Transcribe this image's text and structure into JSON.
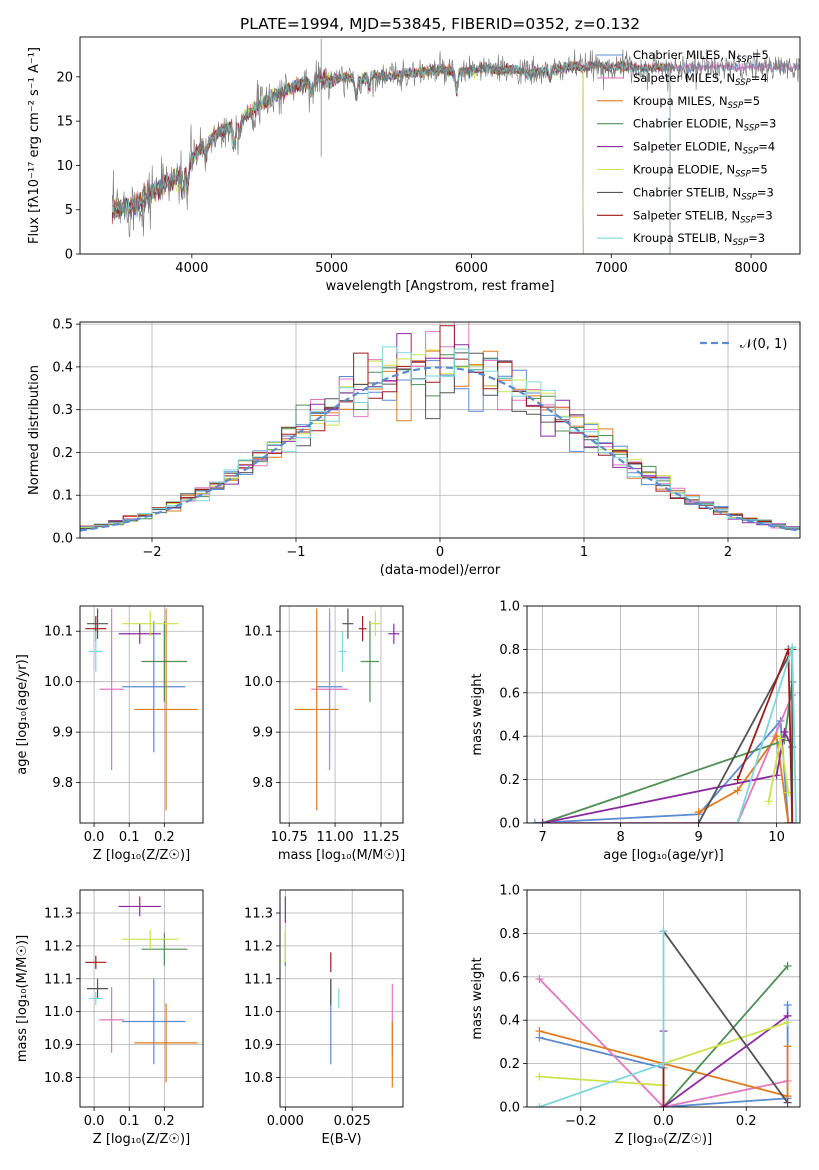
{
  "figure": {
    "title": "PLATE=1994, MJD=53845, FIBERID=0352, z=0.132"
  },
  "colors": {
    "chabrier_miles": "#5b8bd0",
    "salpeter_miles": "#e377c2",
    "kroupa_miles": "#e07b20",
    "chabrier_elodie": "#4f8f55",
    "salpeter_elodie": "#8a2ca0",
    "kroupa_elodie": "#cde24a",
    "chabrier_stelib": "#555555",
    "salpeter_stelib": "#9b1c1c",
    "kroupa_stelib": "#7fd6db",
    "normal_curve": "#5b8bd0"
  },
  "chart_data": [
    {
      "id": "spectrum",
      "type": "line",
      "title": "PLATE=1994, MJD=53845, FIBERID=0352, z=0.132",
      "xlabel": "wavelength [Angstrom, rest frame]",
      "ylabel": "Flux [fλ10⁻¹⁷ erg cm⁻² s⁻¹ A⁻¹]",
      "xlim": [
        3200,
        8350
      ],
      "ylim": [
        0,
        24.5
      ],
      "xticks": [
        4000,
        5000,
        6000,
        7000,
        8000
      ],
      "yticks": [
        0,
        5,
        10,
        15,
        20
      ],
      "grid": false,
      "legend_position": "top-right",
      "continuum": {
        "x": [
          3400,
          3500,
          3600,
          3700,
          3800,
          3900,
          4000,
          4100,
          4200,
          4300,
          4400,
          4500,
          4600,
          4700,
          4800,
          4900,
          5000,
          5100,
          5200,
          5300,
          5400,
          5500,
          5600,
          5700,
          5800,
          5900,
          6000,
          6100,
          6200,
          6300,
          6400,
          6500,
          6600,
          6700,
          6800,
          6900,
          7000,
          7100,
          7200,
          7300,
          7400
        ],
        "y": [
          4.8,
          5.2,
          5.5,
          6.8,
          7.8,
          8.5,
          10.8,
          12.5,
          13.8,
          14.5,
          15.8,
          17.0,
          17.8,
          18.8,
          19.2,
          19.8,
          19.5,
          20.0,
          19.6,
          20.2,
          20.0,
          20.3,
          20.4,
          20.6,
          20.8,
          20.5,
          20.7,
          21.0,
          20.6,
          20.9,
          20.4,
          20.6,
          20.8,
          21.2,
          21.0,
          21.3,
          21.0,
          21.2,
          20.9,
          21.0,
          21.1
        ]
      },
      "series": [
        {
          "name": "Chabrier MILES, N_SSP=5",
          "label_main": "Chabrier MILES, N",
          "label_sub": "SSP",
          "label_tail": "=5",
          "color_key": "chabrier_miles",
          "x_end": 8350
        },
        {
          "name": "Salpeter MILES, N_SSP=4",
          "label_main": "Salpeter MILES, N",
          "label_sub": "SSP",
          "label_tail": "=4",
          "color_key": "salpeter_miles",
          "x_end": 8350
        },
        {
          "name": "Kroupa MILES, N_SSP=5",
          "label_main": "Kroupa MILES, N",
          "label_sub": "SSP",
          "label_tail": "=5",
          "color_key": "kroupa_miles",
          "x_end": 7420
        },
        {
          "name": "Chabrier ELODIE, N_SSP=3",
          "label_main": "Chabrier ELODIE, N",
          "label_sub": "SSP",
          "label_tail": "=3",
          "color_key": "chabrier_elodie",
          "x_end": 6800
        },
        {
          "name": "Salpeter ELODIE, N_SSP=4",
          "label_main": "Salpeter ELODIE, N",
          "label_sub": "SSP",
          "label_tail": "=4",
          "color_key": "salpeter_elodie",
          "x_end": 6800
        },
        {
          "name": "Kroupa ELODIE, N_SSP=5",
          "label_main": "Kroupa ELODIE, N",
          "label_sub": "SSP",
          "label_tail": "=5",
          "color_key": "kroupa_elodie",
          "x_end": 6800
        },
        {
          "name": "Chabrier STELIB, N_SSP=3",
          "label_main": "Chabrier STELIB, N",
          "label_sub": "SSP",
          "label_tail": "=3",
          "color_key": "chabrier_stelib",
          "x_end": 7420
        },
        {
          "name": "Salpeter STELIB, N_SSP=3",
          "label_main": "Salpeter STELIB, N",
          "label_sub": "SSP",
          "label_tail": "=3",
          "color_key": "salpeter_stelib",
          "x_end": 7420
        },
        {
          "name": "Kroupa STELIB, N_SSP=3",
          "label_main": "Kroupa STELIB, N",
          "label_sub": "SSP",
          "label_tail": "=3",
          "color_key": "kroupa_stelib",
          "x_end": 7420
        }
      ]
    },
    {
      "id": "residuals",
      "type": "line",
      "xlabel": "(data-model)/error",
      "ylabel": "Normed distribution",
      "xlim": [
        -2.5,
        2.5
      ],
      "ylim": [
        0,
        0.505
      ],
      "xticks": [
        -2,
        -1,
        0,
        1,
        2
      ],
      "yticks": [
        0.0,
        0.1,
        0.2,
        0.3,
        0.4,
        0.5
      ],
      "grid": true,
      "legend_position": "top-right",
      "legend_label": "𝒩(0, 1)",
      "bin_width": 0.1,
      "curve": {
        "name": "N(0,1)",
        "mean": 0,
        "sigma": 1,
        "color_key": "normal_curve"
      }
    },
    {
      "id": "age_vs_Z",
      "type": "scatter",
      "xlabel": "Z [log₁₀(Z/Z☉)]",
      "ylabel": "age  [log₁₀(age/yr)]",
      "xlim": [
        -0.04,
        0.31
      ],
      "ylim": [
        9.72,
        10.15
      ],
      "xticks": [
        0.0,
        0.1,
        0.2
      ],
      "yticks": [
        9.8,
        9.9,
        10.0,
        10.1
      ],
      "grid": true,
      "points": [
        {
          "color_key": "chabrier_miles",
          "x": 0.17,
          "y": 9.99,
          "xerr": 0.09,
          "yerr": 0.13
        },
        {
          "color_key": "salpeter_miles",
          "x": 0.05,
          "y": 9.985,
          "xerr": 0.035,
          "yerr": 0.16
        },
        {
          "color_key": "kroupa_miles",
          "x": 0.205,
          "y": 9.945,
          "xerr": 0.09,
          "yerr": 0.2
        },
        {
          "color_key": "chabrier_elodie",
          "x": 0.2,
          "y": 10.04,
          "xerr": 0.065,
          "yerr": 0.08
        },
        {
          "color_key": "salpeter_elodie",
          "x": 0.13,
          "y": 10.095,
          "xerr": 0.06,
          "yerr": 0.02
        },
        {
          "color_key": "kroupa_elodie",
          "x": 0.16,
          "y": 10.115,
          "xerr": 0.08,
          "yerr": 0.025
        },
        {
          "color_key": "chabrier_stelib",
          "x": 0.01,
          "y": 10.115,
          "xerr": 0.03,
          "yerr": 0.03
        },
        {
          "color_key": "salpeter_stelib",
          "x": 0.005,
          "y": 10.105,
          "xerr": 0.03,
          "yerr": 0.025
        },
        {
          "color_key": "kroupa_stelib",
          "x": 0.005,
          "y": 10.06,
          "xerr": 0.02,
          "yerr": 0.04
        }
      ]
    },
    {
      "id": "age_vs_mass",
      "type": "scatter",
      "xlabel": "mass [log₁₀(M/M☉)]",
      "ylabel": "",
      "xlim": [
        10.7,
        11.37
      ],
      "ylim": [
        9.72,
        10.15
      ],
      "xticks": [
        10.75,
        11.0,
        11.25
      ],
      "yticks": [
        9.8,
        9.9,
        10.0,
        10.1
      ],
      "grid": true,
      "points": [
        {
          "color_key": "chabrier_miles",
          "x": 10.97,
          "y": 9.99,
          "xerr": 0.07,
          "yerr": 0.13
        },
        {
          "color_key": "salpeter_miles",
          "x": 10.97,
          "y": 9.985,
          "xerr": 0.1,
          "yerr": 0.16
        },
        {
          "color_key": "kroupa_miles",
          "x": 10.9,
          "y": 9.945,
          "xerr": 0.12,
          "yerr": 0.2
        },
        {
          "color_key": "chabrier_elodie",
          "x": 11.19,
          "y": 10.04,
          "xerr": 0.05,
          "yerr": 0.08
        },
        {
          "color_key": "salpeter_elodie",
          "x": 11.32,
          "y": 10.095,
          "xerr": 0.03,
          "yerr": 0.02
        },
        {
          "color_key": "kroupa_elodie",
          "x": 11.22,
          "y": 10.115,
          "xerr": 0.03,
          "yerr": 0.025
        },
        {
          "color_key": "chabrier_stelib",
          "x": 11.07,
          "y": 10.115,
          "xerr": 0.03,
          "yerr": 0.03
        },
        {
          "color_key": "salpeter_stelib",
          "x": 11.15,
          "y": 10.105,
          "xerr": 0.02,
          "yerr": 0.025
        },
        {
          "color_key": "kroupa_stelib",
          "x": 11.04,
          "y": 10.06,
          "xerr": 0.02,
          "yerr": 0.04
        }
      ]
    },
    {
      "id": "weight_vs_age",
      "type": "line",
      "xlabel": "age  [log₁₀(age/yr)]",
      "ylabel": "mass weight",
      "xlim": [
        6.8,
        10.3
      ],
      "ylim": [
        0,
        1.0
      ],
      "xticks": [
        7,
        8,
        9,
        10
      ],
      "yticks": [
        0.0,
        0.2,
        0.4,
        0.6,
        0.8,
        1.0
      ],
      "grid": true,
      "series": [
        {
          "color_key": "chabrier_miles",
          "x": [
            6.9,
            9.0,
            10.05,
            10.15
          ],
          "y": [
            0.0,
            0.04,
            0.47,
            0.0
          ]
        },
        {
          "color_key": "salpeter_miles",
          "x": [
            7.0,
            9.5,
            10.2
          ],
          "y": [
            0.0,
            0.0,
            0.59
          ]
        },
        {
          "color_key": "kroupa_miles",
          "x": [
            9.0,
            9.5,
            10.0,
            10.15
          ],
          "y": [
            0.05,
            0.15,
            0.4,
            0.0
          ]
        },
        {
          "color_key": "chabrier_elodie",
          "x": [
            7.0,
            10.1,
            10.2
          ],
          "y": [
            0.0,
            0.38,
            0.65
          ]
        },
        {
          "color_key": "salpeter_elodie",
          "x": [
            7.0,
            10.0,
            10.1,
            10.2
          ],
          "y": [
            0.0,
            0.22,
            0.42,
            0.35
          ]
        },
        {
          "color_key": "kroupa_elodie",
          "x": [
            9.9,
            10.05,
            10.15
          ],
          "y": [
            0.1,
            0.39,
            0.14
          ]
        },
        {
          "color_key": "chabrier_stelib",
          "x": [
            9.0,
            10.2,
            10.2
          ],
          "y": [
            0.0,
            0.8,
            0.0
          ]
        },
        {
          "color_key": "salpeter_stelib",
          "x": [
            9.5,
            10.15,
            10.2
          ],
          "y": [
            0.2,
            0.8,
            0.0
          ]
        },
        {
          "color_key": "kroupa_stelib",
          "x": [
            9.5,
            10.2,
            10.25
          ],
          "y": [
            0.0,
            0.81,
            0.0
          ]
        }
      ]
    },
    {
      "id": "mass_vs_Z",
      "type": "scatter",
      "xlabel": "Z [log₁₀(Z/Z☉)]",
      "ylabel": "mass [log₁₀(M/M☉)]",
      "xlim": [
        -0.04,
        0.31
      ],
      "ylim": [
        10.71,
        11.37
      ],
      "xticks": [
        0.0,
        0.1,
        0.2
      ],
      "yticks": [
        10.8,
        10.9,
        11.0,
        11.1,
        11.2,
        11.3
      ],
      "grid": true,
      "points": [
        {
          "color_key": "chabrier_miles",
          "x": 0.17,
          "y": 10.97,
          "xerr": 0.09,
          "yerr": 0.13
        },
        {
          "color_key": "salpeter_miles",
          "x": 0.05,
          "y": 10.975,
          "xerr": 0.035,
          "yerr": 0.1
        },
        {
          "color_key": "kroupa_miles",
          "x": 0.205,
          "y": 10.905,
          "xerr": 0.09,
          "yerr": 0.12
        },
        {
          "color_key": "chabrier_elodie",
          "x": 0.2,
          "y": 11.19,
          "xerr": 0.065,
          "yerr": 0.05
        },
        {
          "color_key": "salpeter_elodie",
          "x": 0.13,
          "y": 11.32,
          "xerr": 0.06,
          "yerr": 0.03
        },
        {
          "color_key": "kroupa_elodie",
          "x": 0.16,
          "y": 11.22,
          "xerr": 0.08,
          "yerr": 0.03
        },
        {
          "color_key": "chabrier_stelib",
          "x": 0.01,
          "y": 11.07,
          "xerr": 0.03,
          "yerr": 0.03
        },
        {
          "color_key": "salpeter_stelib",
          "x": 0.005,
          "y": 11.15,
          "xerr": 0.03,
          "yerr": 0.02
        },
        {
          "color_key": "kroupa_stelib",
          "x": 0.005,
          "y": 11.04,
          "xerr": 0.02,
          "yerr": 0.02
        }
      ]
    },
    {
      "id": "mass_vs_ebv",
      "type": "scatter",
      "xlabel": "E(B-V)",
      "ylabel": "",
      "xlim": [
        -0.002,
        0.044
      ],
      "ylim": [
        10.71,
        11.37
      ],
      "xticks": [
        0.0,
        0.025
      ],
      "xtick_labels": [
        "0.000",
        "0.025"
      ],
      "yticks": [
        10.8,
        10.9,
        11.0,
        11.1,
        11.2,
        11.3
      ],
      "grid": true,
      "points": [
        {
          "color_key": "chabrier_miles",
          "x": 0.017,
          "y": 10.97,
          "xerr": 0,
          "yerr": 0.13
        },
        {
          "color_key": "salpeter_miles",
          "x": 0.04,
          "y": 10.975,
          "xerr": 0,
          "yerr": 0.11
        },
        {
          "color_key": "kroupa_miles",
          "x": 0.04,
          "y": 10.87,
          "xerr": 0,
          "yerr": 0.1
        },
        {
          "color_key": "chabrier_elodie",
          "x": 0.0,
          "y": 11.19,
          "xerr": 0,
          "yerr": 0.05
        },
        {
          "color_key": "salpeter_elodie",
          "x": 0.0,
          "y": 11.31,
          "xerr": 0,
          "yerr": 0.04
        },
        {
          "color_key": "kroupa_elodie",
          "x": 0.0,
          "y": 11.2,
          "xerr": 0,
          "yerr": 0.05
        },
        {
          "color_key": "chabrier_stelib",
          "x": 0.017,
          "y": 11.06,
          "xerr": 0,
          "yerr": 0.04
        },
        {
          "color_key": "salpeter_stelib",
          "x": 0.017,
          "y": 11.15,
          "xerr": 0,
          "yerr": 0.03
        },
        {
          "color_key": "kroupa_stelib",
          "x": 0.02,
          "y": 11.04,
          "xerr": 0,
          "yerr": 0.03
        }
      ]
    },
    {
      "id": "weight_vs_Z",
      "type": "line",
      "xlabel": "Z [log₁₀(Z/Z☉)]",
      "ylabel": "mass weight",
      "xlim": [
        -0.33,
        0.33
      ],
      "ylim": [
        0,
        1.0
      ],
      "xticks": [
        -0.2,
        0.0,
        0.2
      ],
      "xtick_labels": [
        "−0.2",
        "0.0",
        "0.2"
      ],
      "yticks": [
        0.0,
        0.2,
        0.4,
        0.6,
        0.8,
        1.0
      ],
      "grid": true,
      "series": [
        {
          "color_key": "chabrier_miles",
          "x": [
            -0.3,
            0.0,
            0.0,
            0.3,
            0.3
          ],
          "y": [
            0.32,
            0.18,
            0.0,
            0.04,
            0.47
          ]
        },
        {
          "color_key": "salpeter_miles",
          "x": [
            -0.3,
            0.0,
            0.3
          ],
          "y": [
            0.59,
            0.0,
            0.12
          ]
        },
        {
          "color_key": "kroupa_miles",
          "x": [
            -0.3,
            0.0,
            0.3,
            0.3
          ],
          "y": [
            0.35,
            0.2,
            0.05,
            0.28
          ]
        },
        {
          "color_key": "chabrier_elodie",
          "x": [
            0.0,
            0.3
          ],
          "y": [
            0.0,
            0.65
          ]
        },
        {
          "color_key": "salpeter_elodie",
          "x": [
            0.0,
            0.0,
            0.3
          ],
          "y": [
            0.35,
            0.0,
            0.42
          ]
        },
        {
          "color_key": "kroupa_elodie",
          "x": [
            -0.3,
            0.0,
            0.0,
            0.3
          ],
          "y": [
            0.14,
            0.1,
            0.2,
            0.39
          ]
        },
        {
          "color_key": "chabrier_stelib",
          "x": [
            0.0,
            0.3
          ],
          "y": [
            0.81,
            0.02
          ]
        },
        {
          "color_key": "salpeter_stelib",
          "x": [
            0.0,
            0.0
          ],
          "y": [
            0.2,
            0.0
          ]
        },
        {
          "color_key": "kroupa_stelib",
          "x": [
            -0.3,
            0.0,
            0.0
          ],
          "y": [
            0.0,
            0.2,
            0.81
          ]
        }
      ]
    }
  ]
}
